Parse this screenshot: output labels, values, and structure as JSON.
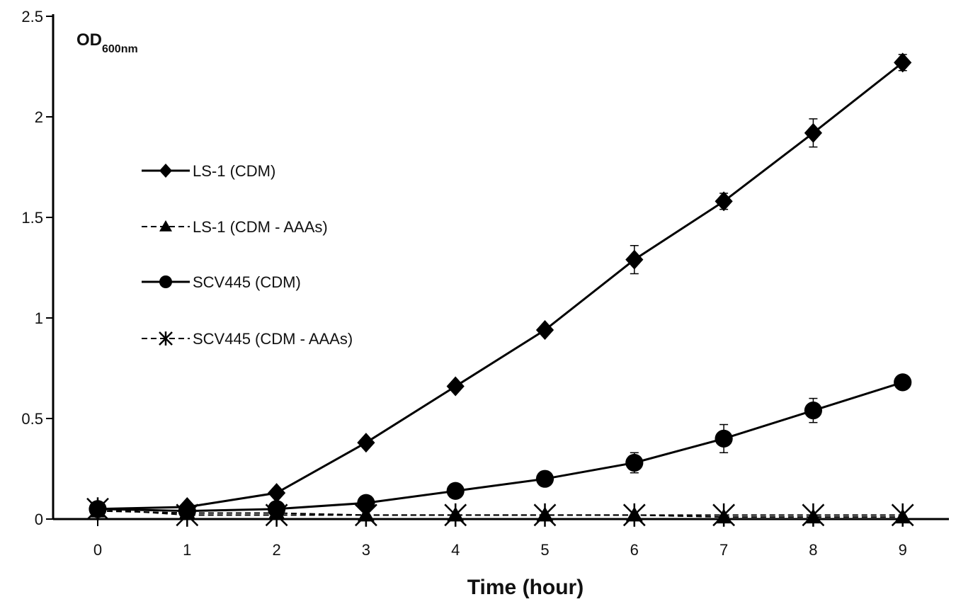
{
  "chart_data": {
    "type": "line",
    "xlabel": "Time (hour)",
    "ylabel_main": "OD",
    "ylabel_sub": "600nm",
    "x": [
      0,
      1,
      2,
      3,
      4,
      5,
      6,
      7,
      8,
      9
    ],
    "ylim": [
      0,
      2.5
    ],
    "xlim": [
      0,
      9
    ],
    "yticks": [
      "0",
      "0.5",
      "1",
      "1.5",
      "2",
      "2.5"
    ],
    "xticks": [
      "0",
      "1",
      "2",
      "3",
      "4",
      "5",
      "6",
      "7",
      "8",
      "9"
    ],
    "grid": false,
    "legend_position": "left",
    "series": [
      {
        "name": "LS-1 (CDM)",
        "marker": "diamond",
        "line": "solid",
        "values": [
          0.05,
          0.06,
          0.13,
          0.38,
          0.66,
          0.94,
          1.29,
          1.58,
          1.92,
          2.27
        ],
        "errors": [
          0,
          0,
          0,
          0,
          0,
          0.02,
          0.07,
          0.04,
          0.07,
          0.04
        ]
      },
      {
        "name": "LS-1 (CDM - AAAs)",
        "marker": "triangle",
        "line": "dashed",
        "values": [
          0.04,
          0.03,
          0.03,
          0.02,
          0.02,
          0.02,
          0.02,
          0.01,
          0.01,
          0.01
        ],
        "errors": [
          0,
          0,
          0,
          0,
          0,
          0,
          0,
          0,
          0,
          0
        ]
      },
      {
        "name": "SCV445 (CDM)",
        "marker": "circle",
        "line": "solid",
        "values": [
          0.05,
          0.04,
          0.05,
          0.08,
          0.14,
          0.2,
          0.28,
          0.4,
          0.54,
          0.68
        ],
        "errors": [
          0,
          0,
          0,
          0,
          0,
          0,
          0.05,
          0.07,
          0.06,
          0
        ]
      },
      {
        "name": "SCV445 (CDM - AAAs)",
        "marker": "asterisk",
        "line": "dashed",
        "values": [
          0.05,
          0.02,
          0.02,
          0.02,
          0.02,
          0.02,
          0.02,
          0.02,
          0.02,
          0.02
        ],
        "errors": [
          0,
          0,
          0,
          0,
          0,
          0,
          0,
          0,
          0,
          0
        ]
      }
    ]
  },
  "colors": {
    "ink": "#000000",
    "background": "#ffffff"
  }
}
